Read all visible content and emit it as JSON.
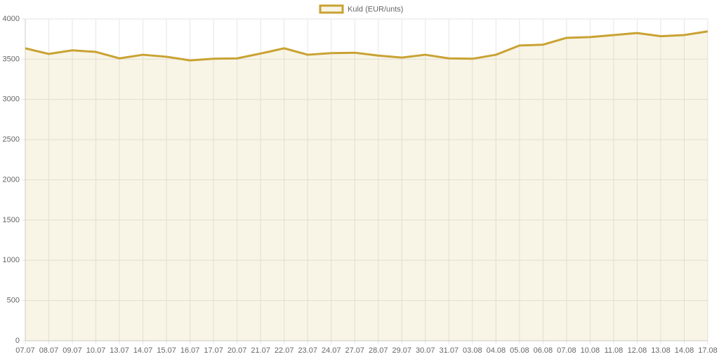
{
  "chart_data": {
    "type": "area",
    "categories": [
      "07.07",
      "08.07",
      "09.07",
      "10.07",
      "13.07",
      "14.07",
      "15.07",
      "16.07",
      "17.07",
      "20.07",
      "21.07",
      "22.07",
      "23.07",
      "24.07",
      "27.07",
      "28.07",
      "29.07",
      "30.07",
      "31.07",
      "03.08",
      "04.08",
      "05.08",
      "06.08",
      "07.08",
      "10.08",
      "11.08",
      "12.08",
      "13.08",
      "14.08",
      "17.08"
    ],
    "series": [
      {
        "name": "Kuld (EUR/unts)",
        "color": "#c9a232",
        "values": [
          3635,
          3565,
          3610,
          3590,
          3510,
          3555,
          3530,
          3485,
          3505,
          3510,
          3570,
          3635,
          3555,
          3575,
          3580,
          3545,
          3520,
          3555,
          3510,
          3505,
          3555,
          3670,
          3680,
          3765,
          3775,
          3800,
          3825,
          3785,
          3800,
          3845
        ]
      }
    ],
    "ylim": [
      0,
      4000
    ],
    "yticks": [
      0,
      500,
      1000,
      1500,
      2000,
      2500,
      3000,
      3500,
      4000
    ],
    "grid": true,
    "legend": "top"
  }
}
